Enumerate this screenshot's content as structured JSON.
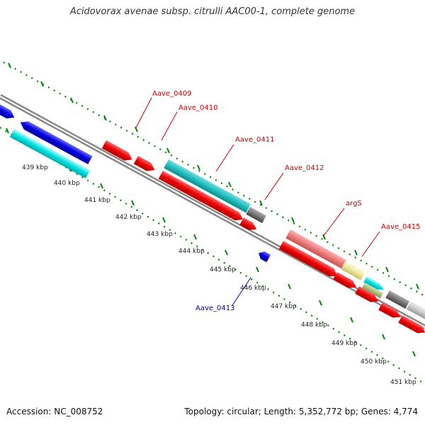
{
  "title": "Acidovorax avenae subsp. citrulli AAC00-1, complete genome",
  "footer": {
    "accession": "Accession: NC_008752",
    "topology": "Topology: circular; Length: 5,352,772 bp; Genes: 4,774"
  },
  "scale_labels": [
    "439 kbp",
    "440 kbp",
    "441 kbp",
    "442 kbp",
    "443 kbp",
    "444 kbp",
    "445 kbp",
    "446 kbp",
    "447 kbp",
    "448 kbp",
    "449 kbp",
    "450 kbp",
    "451 kbp"
  ],
  "gene_labels": [
    {
      "text": "Aave_0409",
      "color": "#cc0000"
    },
    {
      "text": "Aave_0410",
      "color": "#cc0000"
    },
    {
      "text": "Aave_0411",
      "color": "#cc0000"
    },
    {
      "text": "Aave_0412",
      "color": "#cc0000"
    },
    {
      "text": "argS",
      "color": "#cc0000"
    },
    {
      "text": "Aave_0415",
      "color": "#cc0000"
    },
    {
      "text": "Aave_0413",
      "color": "#0000aa"
    }
  ],
  "colors": {
    "cds": "#ee0000",
    "blue_gene": "#0000dd",
    "cyan_gene": "#00e0e0",
    "teal_gene": "#20c0c0",
    "pink_gene": "#ee7b7b",
    "yellow_gene": "#eeeaa0",
    "gray_gene": "#777777",
    "backbone": "#888888",
    "ticks": "#008800"
  }
}
